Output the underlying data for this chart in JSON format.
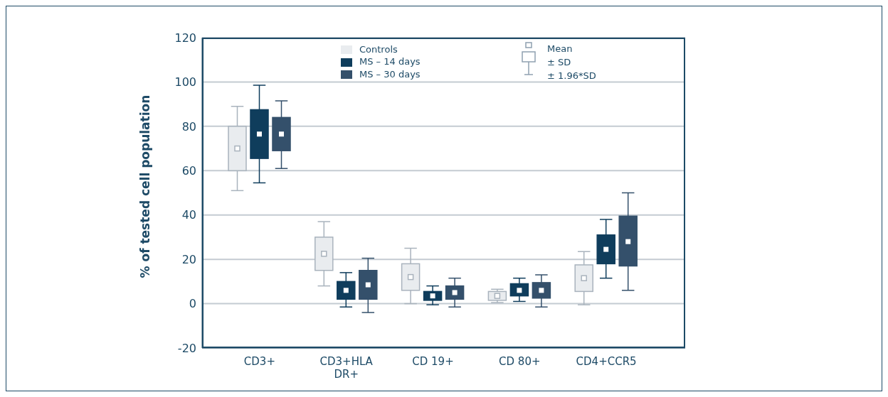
{
  "chart_data": {
    "type": "box",
    "ylabel": "% of tested cell population",
    "categories": [
      "CD3+",
      "CD3+HLA DR+",
      "CD 19+",
      "CD 80+",
      "CD4+CCR5"
    ],
    "series": [
      {
        "name": "Controls",
        "color": "#e9ecef",
        "boxes": [
          {
            "low": 51,
            "q1": 60,
            "median": 70,
            "q3": 80,
            "high": 89
          },
          {
            "low": 8,
            "q1": 15,
            "median": 22.5,
            "q3": 30,
            "high": 37
          },
          {
            "low": 0,
            "q1": 6,
            "median": 12,
            "q3": 18,
            "high": 25
          },
          {
            "low": 0.5,
            "q1": 1.5,
            "median": 3.5,
            "q3": 5.5,
            "high": 6.5
          },
          {
            "low": -0.5,
            "q1": 5.5,
            "median": 11.5,
            "q3": 17.5,
            "high": 23.5
          }
        ]
      },
      {
        "name": "MS – 14 days",
        "color": "#0f3d5c",
        "boxes": [
          {
            "low": 54.5,
            "q1": 65.5,
            "median": 76.5,
            "q3": 87.5,
            "high": 98.5
          },
          {
            "low": -1.5,
            "q1": 2,
            "median": 6,
            "q3": 10,
            "high": 14
          },
          {
            "low": -0.5,
            "q1": 1.5,
            "median": 3.5,
            "q3": 5.5,
            "high": 8
          },
          {
            "low": 1,
            "q1": 3.5,
            "median": 6,
            "q3": 9,
            "high": 11.5
          },
          {
            "low": 11.5,
            "q1": 18,
            "median": 24.5,
            "q3": 31,
            "high": 38
          }
        ]
      },
      {
        "name": "MS – 30 days",
        "color": "#34506b",
        "boxes": [
          {
            "low": 61,
            "q1": 69,
            "median": 76.5,
            "q3": 84,
            "high": 91.5
          },
          {
            "low": -4,
            "q1": 2,
            "median": 8.5,
            "q3": 15,
            "high": 20.5
          },
          {
            "low": -1.5,
            "q1": 2,
            "median": 5,
            "q3": 8,
            "high": 11.5
          },
          {
            "low": -1.5,
            "q1": 2.5,
            "median": 6,
            "q3": 9.5,
            "high": 13
          },
          {
            "low": 6,
            "q1": 17,
            "median": 28,
            "q3": 39.5,
            "high": 50
          }
        ]
      }
    ],
    "ylim": [
      -20,
      120
    ],
    "yticks": [
      -20,
      0,
      20,
      40,
      60,
      80,
      100,
      120
    ],
    "grid": "y",
    "legend": "top",
    "annotations": [
      "Mean",
      "± SD",
      "± 1.96*SD"
    ]
  }
}
